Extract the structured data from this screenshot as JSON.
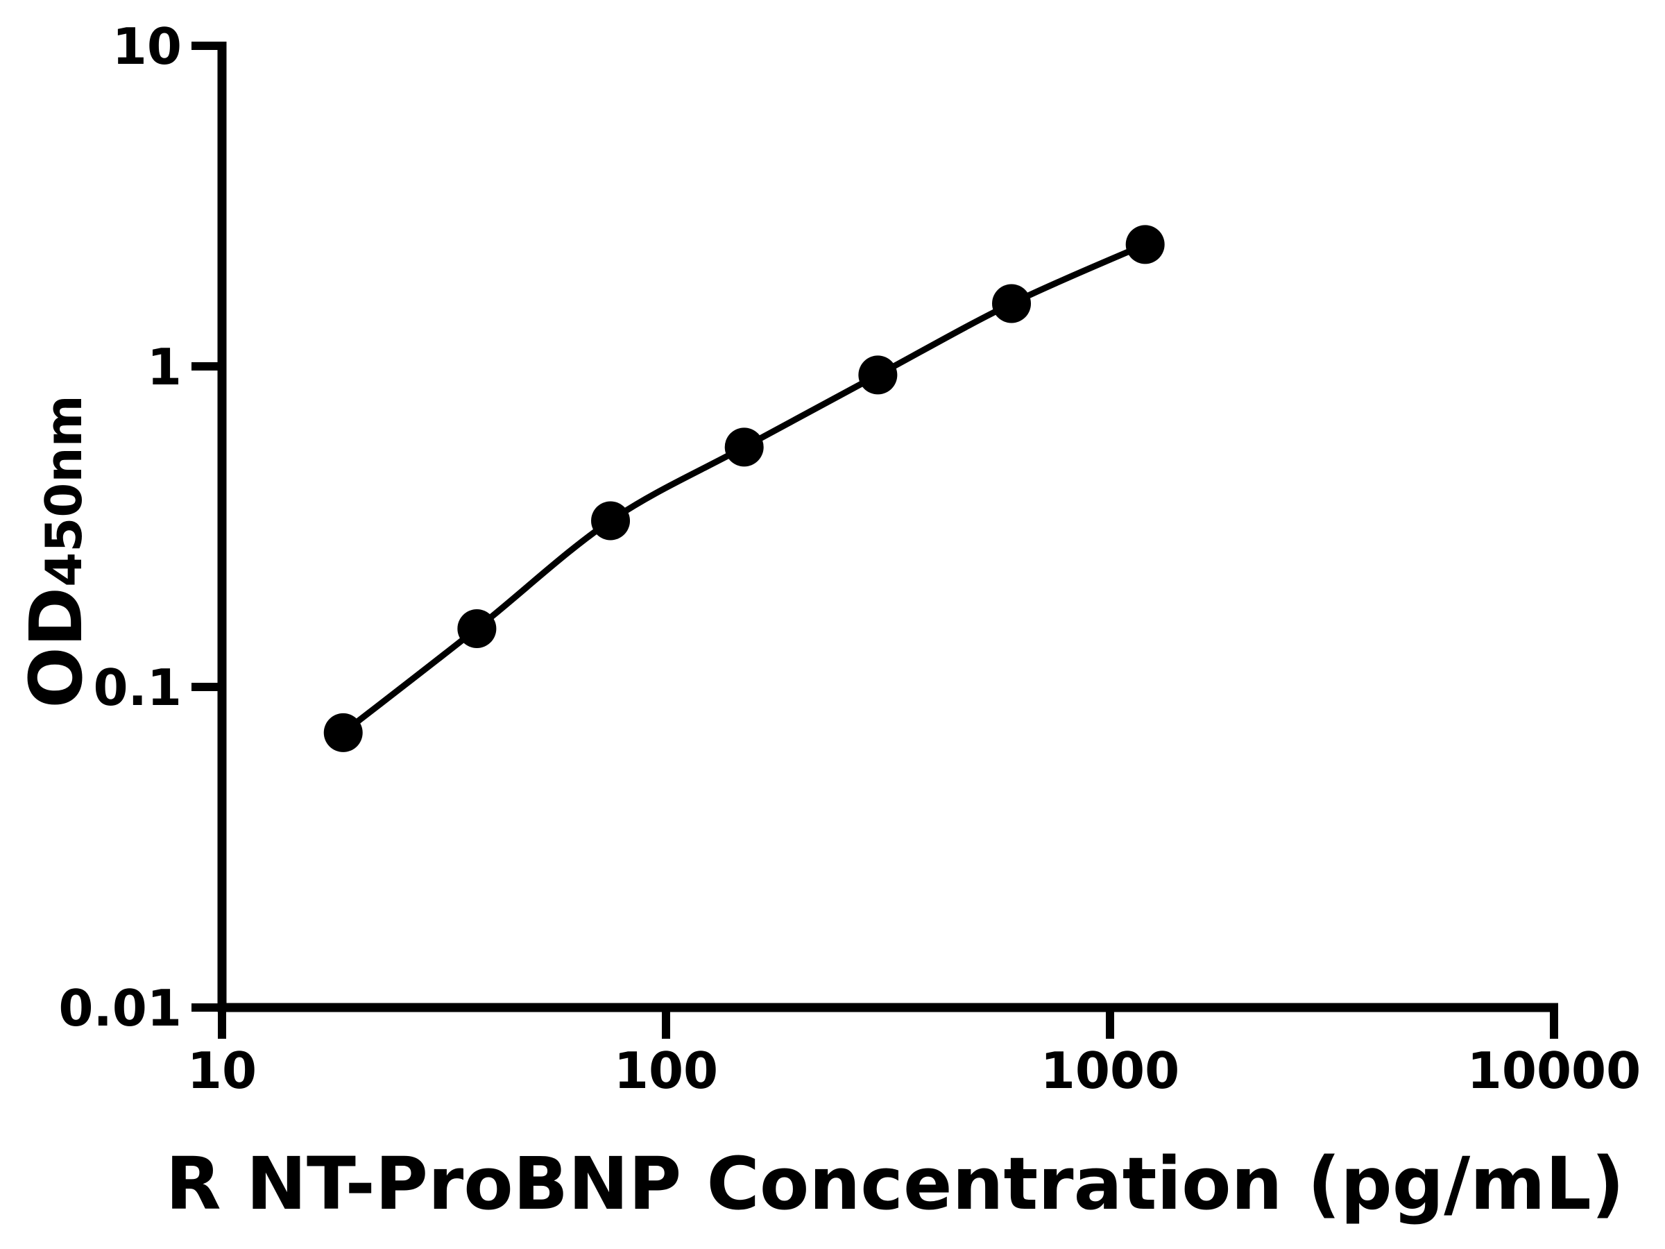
{
  "chart_data": {
    "type": "line",
    "x": [
      18.75,
      37.5,
      75,
      150,
      300,
      600,
      1200
    ],
    "y": [
      0.072,
      0.152,
      0.33,
      0.56,
      0.94,
      1.57,
      2.4
    ],
    "xlabel": "R NT-ProBNP Concentration (pg/mL)",
    "ylabel_main": "OD",
    "ylabel_sub": "450nm",
    "x_scale": "log",
    "y_scale": "log",
    "xlim": [
      10,
      10000
    ],
    "ylim": [
      0.01,
      10
    ],
    "x_tick_labels": [
      "10",
      "100",
      "1000",
      "10000"
    ],
    "y_tick_labels": [
      "10",
      "1",
      "0.1",
      "0.01"
    ],
    "grid": false,
    "legend": false,
    "marker": "circle",
    "marker_color": "#000000",
    "line_color": "#000000",
    "axis_color": "#000000",
    "background": "#ffffff"
  }
}
